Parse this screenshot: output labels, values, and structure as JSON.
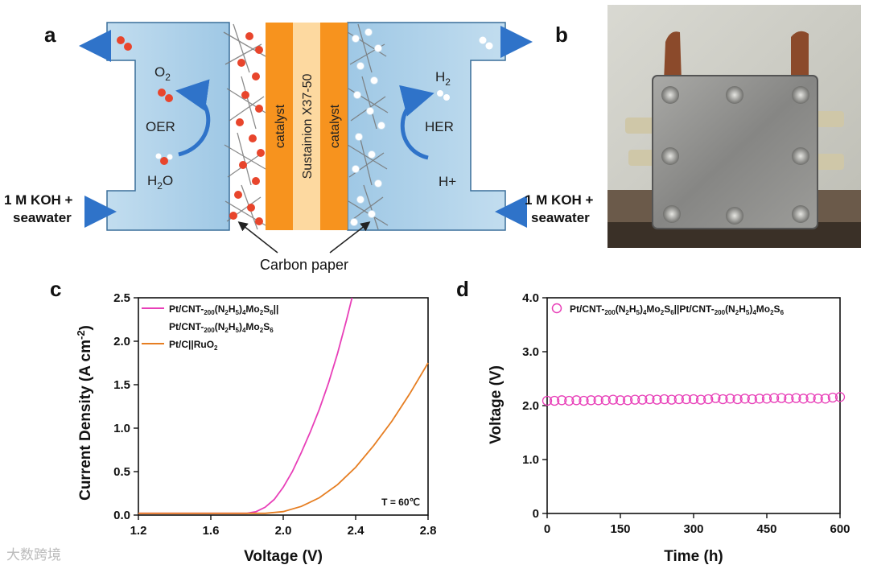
{
  "panels": {
    "a": "a",
    "b": "b",
    "c": "c",
    "d": "d"
  },
  "schematic": {
    "o2": "O",
    "o2_sub": "2",
    "oer": "OER",
    "h2o_left": "H",
    "h2o_sub": "2",
    "h2o_right": "O",
    "h2": "H",
    "h2_sub": "2",
    "her": "HER",
    "hplus": "H+",
    "catalyst": "catalyst",
    "membrane": "Sustainion X37-50",
    "carbon_paper": "Carbon paper",
    "feed_line1": "1 M KOH +",
    "feed_line2": "seawater",
    "colors": {
      "electrolyte": "#a9cde6",
      "catalyst": "#f7931e",
      "membrane": "#fdd9a0",
      "oxygen": "#e8452c",
      "hydrogen": "#ffffff",
      "arrow": "#2f73c9"
    }
  },
  "photo": {
    "description": "",
    "icon": "electrolyzer-photo"
  },
  "watermark": "大数跨境",
  "chart_data": [
    {
      "type": "line",
      "xlabel": "Voltage (V)",
      "ylabel": "Current Density (A cm",
      "ylabel_sup": "-2",
      "ylabel_end": ")",
      "xlim": [
        1.2,
        2.8
      ],
      "ylim": [
        0,
        2.5
      ],
      "xticks": [
        "1.2",
        "1.6",
        "2.0",
        "2.4",
        "2.8"
      ],
      "yticks": [
        "0.0",
        "0.5",
        "1.0",
        "1.5",
        "2.0",
        "2.5"
      ],
      "annotation": "T = 60℃",
      "legend": [
        {
          "line1": "Pt/CNT-",
          "sub1": "200",
          "mid1": "(N",
          "sub2": "2",
          "mid2": "H",
          "sub3": "5",
          "mid3": ")",
          "sub4": "4",
          "mid4": "Mo",
          "sub5": "2",
          "mid5": "S",
          "sub6": "6",
          "end": "||",
          "color": "#e83fb8"
        },
        {
          "line1": "Pt/CNT-",
          "sub1": "200",
          "mid1": "(N",
          "sub2": "2",
          "mid2": "H",
          "sub3": "5",
          "mid3": ")",
          "sub4": "4",
          "mid4": "Mo",
          "sub5": "2",
          "mid5": "S",
          "sub6": "6",
          "end": "",
          "color": "#e83fb8"
        },
        {
          "line1": "Pt/C||RuO",
          "sub1": "2",
          "color": "#e67e22"
        }
      ],
      "series": [
        {
          "name": "Pt/CNT-200(N2H5)4Mo2S6||Pt/CNT-200(N2H5)4Mo2S6",
          "color": "#e83fb8",
          "x": [
            1.2,
            1.6,
            1.8,
            1.85,
            1.9,
            1.95,
            2.0,
            2.05,
            2.1,
            2.15,
            2.2,
            2.25,
            2.3,
            2.35,
            2.38
          ],
          "y": [
            0.02,
            0.02,
            0.02,
            0.04,
            0.09,
            0.18,
            0.32,
            0.5,
            0.72,
            0.96,
            1.22,
            1.52,
            1.86,
            2.25,
            2.5
          ]
        },
        {
          "name": "Pt/C||RuO2",
          "color": "#e67e22",
          "x": [
            1.2,
            1.6,
            1.9,
            2.0,
            2.1,
            2.2,
            2.3,
            2.4,
            2.5,
            2.6,
            2.7,
            2.8
          ],
          "y": [
            0.02,
            0.02,
            0.02,
            0.04,
            0.1,
            0.2,
            0.35,
            0.55,
            0.8,
            1.08,
            1.4,
            1.75
          ]
        }
      ]
    },
    {
      "type": "scatter",
      "xlabel": "Time (h)",
      "ylabel": "Voltage (V)",
      "xlim": [
        0,
        600
      ],
      "ylim": [
        0,
        4.0
      ],
      "xticks": [
        "0",
        "150",
        "300",
        "450",
        "600"
      ],
      "yticks": [
        "0",
        "1.0",
        "2.0",
        "3.0",
        "4.0"
      ],
      "legend": [
        {
          "text": "Pt/CNT-",
          "sub1": "200",
          "t2": "(N",
          "sub2": "2",
          "t3": "H",
          "sub3": "5",
          "t4": ")",
          "sub4": "4",
          "t5": "Mo",
          "sub5": "2",
          "t6": "S",
          "sub6": "6",
          "t7": "||Pt/CNT-",
          "sub7": "200",
          "t8": "(N",
          "sub8": "2",
          "t9": "H",
          "sub9": "5",
          "t10": ")",
          "sub10": "4",
          "t11": "Mo",
          "sub11": "2",
          "t12": "S",
          "sub12": "6",
          "color": "#e83fb8"
        }
      ],
      "series": [
        {
          "name": "Pt/CNT-200(N2H5)4Mo2S6||Pt/CNT-200(N2H5)4Mo2S6",
          "color": "#e83fb8",
          "x": [
            0,
            15,
            30,
            45,
            60,
            75,
            90,
            105,
            120,
            135,
            150,
            165,
            180,
            195,
            210,
            225,
            240,
            255,
            270,
            285,
            300,
            315,
            330,
            345,
            360,
            375,
            390,
            405,
            420,
            435,
            450,
            465,
            480,
            495,
            510,
            525,
            540,
            555,
            570,
            585,
            600
          ],
          "y": [
            2.09,
            2.09,
            2.1,
            2.09,
            2.1,
            2.09,
            2.1,
            2.1,
            2.1,
            2.11,
            2.1,
            2.1,
            2.11,
            2.11,
            2.12,
            2.11,
            2.12,
            2.11,
            2.12,
            2.12,
            2.12,
            2.11,
            2.12,
            2.14,
            2.12,
            2.13,
            2.12,
            2.13,
            2.12,
            2.13,
            2.13,
            2.14,
            2.14,
            2.13,
            2.14,
            2.13,
            2.14,
            2.13,
            2.13,
            2.15,
            2.16
          ]
        }
      ]
    }
  ]
}
